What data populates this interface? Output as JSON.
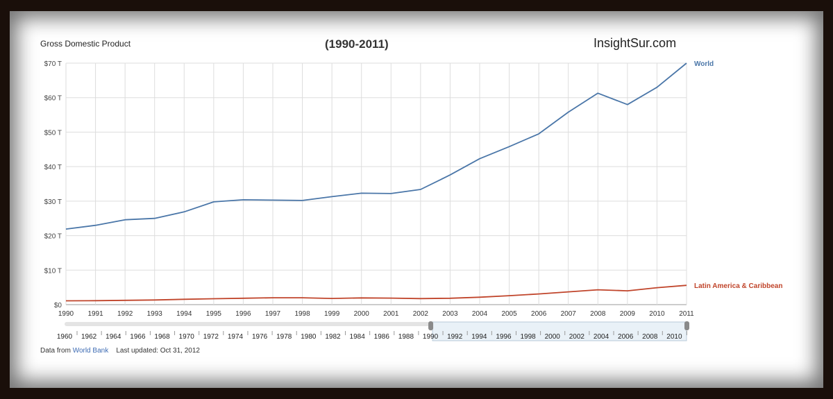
{
  "header": {
    "title": "Gross Domestic Product",
    "period": "(1990-2011)",
    "brand": "InsightSur.com"
  },
  "footer": {
    "prefix": "Data from",
    "source_link": "World Bank",
    "updated": "Last updated: Oct 31, 2012"
  },
  "colors": {
    "world": "#4a76a8",
    "latam": "#c0442a",
    "grid": "#dddddd"
  },
  "chart_data": {
    "type": "line",
    "x": [
      1990,
      1991,
      1992,
      1993,
      1994,
      1995,
      1996,
      1997,
      1998,
      1999,
      2000,
      2001,
      2002,
      2003,
      2004,
      2005,
      2006,
      2007,
      2008,
      2009,
      2010,
      2011
    ],
    "y_ticks": [
      "$0",
      "$10 T",
      "$20 T",
      "$30 T",
      "$40 T",
      "$50 T",
      "$60 T",
      "$70 T"
    ],
    "ylim": [
      0,
      70
    ],
    "grid": true,
    "series": [
      {
        "name": "World",
        "values": [
          21.9,
          23.0,
          24.6,
          25.0,
          26.9,
          29.8,
          30.4,
          30.3,
          30.2,
          31.3,
          32.3,
          32.2,
          33.4,
          37.6,
          42.3,
          45.8,
          49.5,
          55.8,
          61.3,
          58.0,
          63.0,
          70.0
        ]
      },
      {
        "name": "Latin America & Caribbean",
        "values": [
          1.1,
          1.15,
          1.25,
          1.35,
          1.55,
          1.7,
          1.85,
          2.0,
          2.0,
          1.8,
          1.95,
          1.9,
          1.75,
          1.85,
          2.15,
          2.6,
          3.1,
          3.7,
          4.3,
          4.0,
          4.9,
          5.6
        ]
      }
    ],
    "range_selector": {
      "ticks": [
        "1960",
        "1962",
        "1964",
        "1966",
        "1968",
        "1970",
        "1972",
        "1974",
        "1976",
        "1978",
        "1980",
        "1982",
        "1984",
        "1986",
        "1988",
        "1990",
        "1992",
        "1994",
        "1996",
        "1998",
        "2000",
        "2002",
        "2004",
        "2006",
        "2008",
        "2010"
      ],
      "selected": [
        1990,
        2011
      ]
    }
  }
}
